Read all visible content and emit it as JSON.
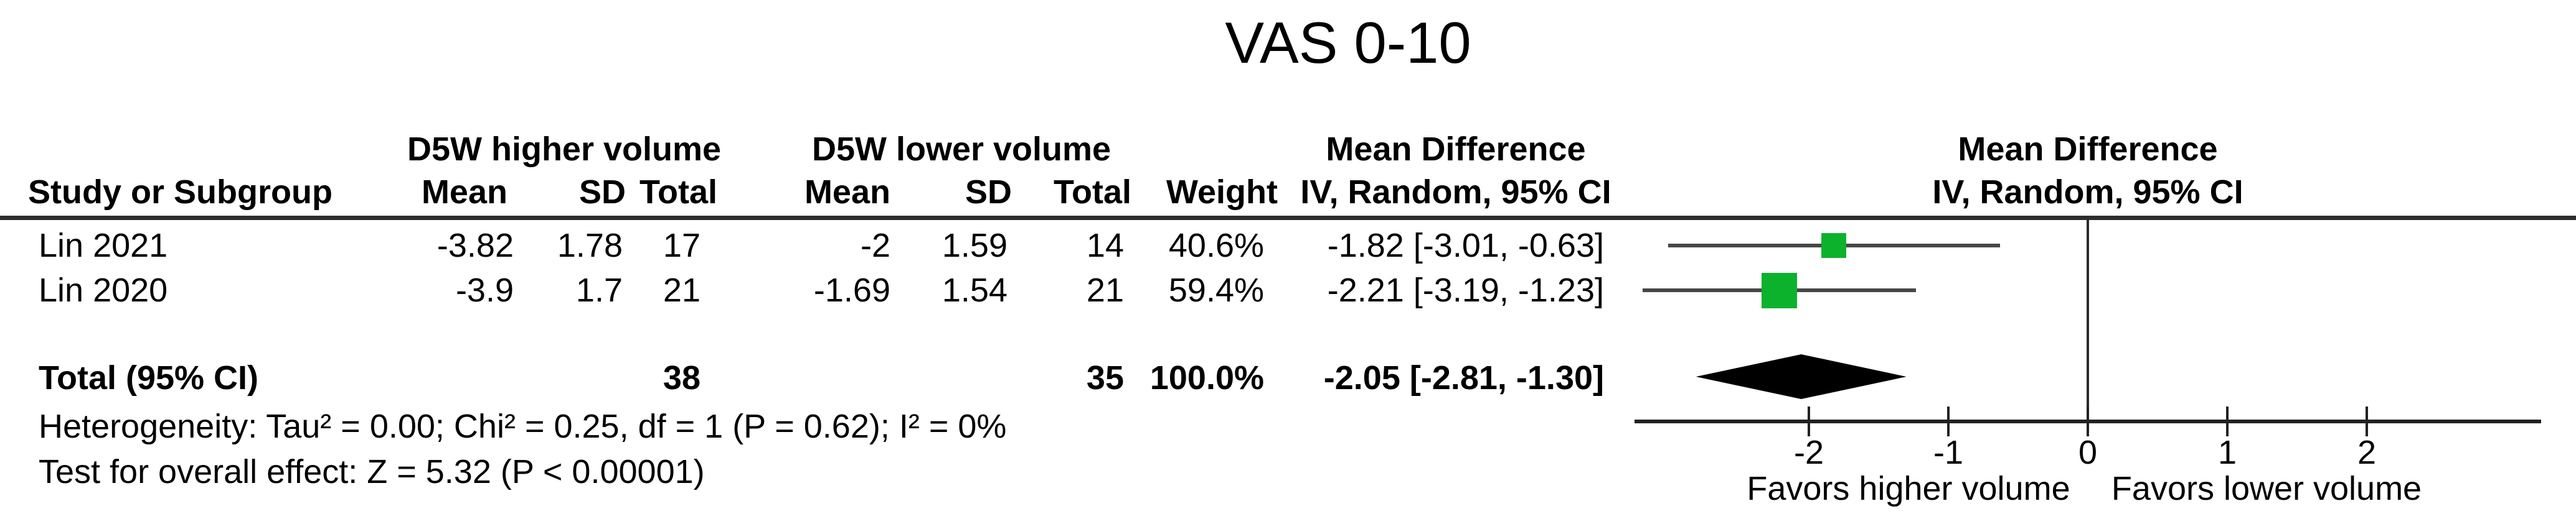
{
  "title": "VAS 0-10",
  "header": {
    "study_col": "Study or Subgroup",
    "group1": "D5W higher volume",
    "group2": "D5W lower volume",
    "sub": {
      "mean": "Mean",
      "sd": "SD",
      "total": "Total"
    },
    "weight": "Weight",
    "md": "Mean Difference",
    "md_sub": "IV, Random, 95% CI"
  },
  "table": {
    "rows": [
      {
        "study": "Lin 2021",
        "mean1": "-3.82",
        "sd1": "1.78",
        "total1": "17",
        "mean2": "-2",
        "sd2": "1.59",
        "total2": "14",
        "weight": "40.6%",
        "md_ci": "-1.82 [-3.01, -0.63]"
      },
      {
        "study": "Lin 2020",
        "mean1": "-3.9",
        "sd1": "1.7",
        "total1": "21",
        "mean2": "-1.69",
        "sd2": "1.54",
        "total2": "21",
        "weight": "59.4%",
        "md_ci": "-2.21 [-3.19, -1.23]"
      }
    ],
    "total": {
      "label": "Total (95% CI)",
      "total1": "38",
      "total2": "35",
      "weight": "100.0%",
      "md_ci": "-2.05 [-2.81, -1.30]"
    },
    "heterogeneity": "Heterogeneity: Tau² = 0.00; Chi² = 0.25, df = 1 (P = 0.62); I² = 0%",
    "overall_effect": "Test for overall effect: Z = 5.32 (P < 0.00001)"
  },
  "plot": {
    "favors_left": "Favors higher volume",
    "favors_right": "Favors lower volume"
  },
  "colors": {
    "square_green": "#0CB22C",
    "ci_line": "#474747",
    "ink": "#222222",
    "diamond": "#000000"
  },
  "chart_data": {
    "type": "forest",
    "title": "VAS 0-10",
    "effect_measure": "Mean Difference, IV, Random, 95% CI",
    "studies": [
      {
        "name": "Lin 2021",
        "md": -1.82,
        "ci_low": -3.01,
        "ci_high": -0.63,
        "weight_pct": 40.6,
        "higher_volume": {
          "mean": -3.82,
          "sd": 1.78,
          "n": 17
        },
        "lower_volume": {
          "mean": -2.0,
          "sd": 1.59,
          "n": 14
        }
      },
      {
        "name": "Lin 2020",
        "md": -2.21,
        "ci_low": -3.19,
        "ci_high": -1.23,
        "weight_pct": 59.4,
        "higher_volume": {
          "mean": -3.9,
          "sd": 1.7,
          "n": 21
        },
        "lower_volume": {
          "mean": -1.69,
          "sd": 1.54,
          "n": 21
        }
      },
      {
        "name": "Total (95% CI)",
        "md": -2.05,
        "ci_low": -2.81,
        "ci_high": -1.3,
        "weight_pct": 100.0,
        "pooled": true,
        "n_higher": 38,
        "n_lower": 35
      }
    ],
    "heterogeneity": {
      "tau2": 0.0,
      "chi2": 0.25,
      "df": 1,
      "p": 0.62,
      "i2_pct": 0
    },
    "overall_effect": {
      "z": 5.32,
      "p": "< 0.00001"
    },
    "xticks": [
      -2,
      -1,
      0,
      1,
      2
    ],
    "xlim": [
      -3.25,
      3.25
    ],
    "axis_labels": {
      "left": "Favors higher volume",
      "right": "Favors lower volume"
    }
  }
}
